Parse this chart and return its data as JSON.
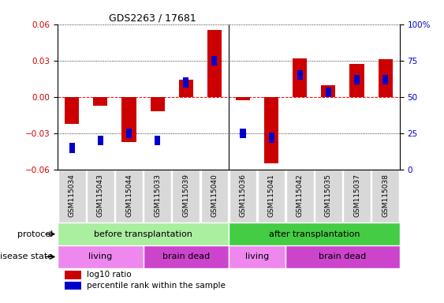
{
  "title": "GDS2263 / 17681",
  "samples": [
    "GSM115034",
    "GSM115043",
    "GSM115044",
    "GSM115033",
    "GSM115039",
    "GSM115040",
    "GSM115036",
    "GSM115041",
    "GSM115042",
    "GSM115035",
    "GSM115037",
    "GSM115038"
  ],
  "log10_ratio": [
    -0.022,
    -0.007,
    -0.037,
    -0.012,
    0.014,
    0.055,
    -0.003,
    -0.055,
    0.032,
    0.01,
    0.027,
    0.031
  ],
  "percentile_rank": [
    15,
    20,
    25,
    20,
    60,
    75,
    25,
    22,
    65,
    53,
    62,
    62
  ],
  "ylim": [
    -0.06,
    0.06
  ],
  "y2lim": [
    0,
    100
  ],
  "yticks": [
    -0.06,
    -0.03,
    0,
    0.03,
    0.06
  ],
  "y2ticks": [
    0,
    25,
    50,
    75,
    100
  ],
  "bar_color_red": "#cc0000",
  "bar_color_blue": "#0000cc",
  "protocol_before_color": "#aaeea0",
  "protocol_after_color": "#44cc44",
  "disease_living_color": "#ee88ee",
  "disease_braindead_color": "#cc44cc",
  "protocol_before_label": "before transplantation",
  "protocol_after_label": "after transplantation",
  "disease_living_label": "living",
  "disease_braindead_label": "brain dead",
  "protocol_row_label": "protocol",
  "disease_row_label": "disease state",
  "legend_red": "log10 ratio",
  "legend_blue": "percentile rank within the sample",
  "bar_width": 0.5,
  "blue_bar_width": 0.2,
  "blue_bar_height": 0.008,
  "tick_label_bg": "#d8d8d8",
  "living_before_count": 3,
  "braindead_before_count": 3,
  "living_after_count": 2,
  "braindead_after_count": 4
}
